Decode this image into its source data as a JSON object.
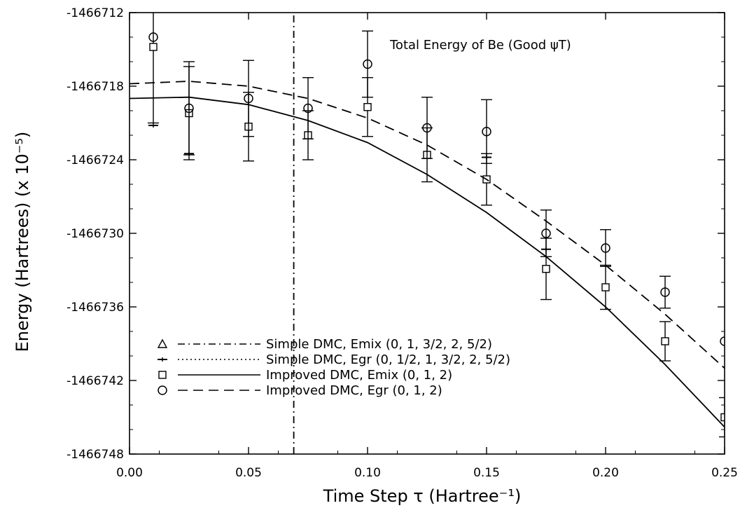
{
  "chart_data": {
    "type": "line",
    "title": "",
    "annotation": "Total Energy of Be (Good ψT)",
    "xlabel": "Time Step τ (Hartree⁻¹)",
    "ylabel": "Energy (Hartrees) (x 10⁻⁵)",
    "xlim": [
      0.0,
      0.25
    ],
    "ylim": [
      -1466748,
      -1466712
    ],
    "x_ticks": [
      0.0,
      0.05,
      0.1,
      0.15,
      0.2,
      0.25
    ],
    "x_tick_labels": [
      "0.00",
      "0.05",
      "0.10",
      "0.15",
      "0.20",
      "0.25"
    ],
    "y_ticks": [
      -1466748,
      -1466742,
      -1466736,
      -1466730,
      -1466724,
      -1466718,
      -1466712
    ],
    "y_tick_labels": [
      "-1466748",
      "-1466742",
      "-1466736",
      "-1466730",
      "-1466724",
      "-1466718",
      "-1466712"
    ],
    "grid": false,
    "legend_position": "bottom-left",
    "legend": [
      {
        "marker": "△",
        "line": "dashdot",
        "label": "Simple DMC, Emix (0, 1, 3/2, 2, 5/2)"
      },
      {
        "marker": "+",
        "line": "dotted",
        "label": "Simple DMC, Egr (0, 1/2, 1, 3/2, 2, 5/2)"
      },
      {
        "marker": "□",
        "line": "solid",
        "label": "Improved DMC, Emix (0, 1, 2)"
      },
      {
        "marker": "○",
        "line": "dashed",
        "label": "Improved DMC, Egr (0, 1, 2)"
      }
    ],
    "series": [
      {
        "label_ref": "Simple DMC, Emix",
        "line_style": "dashdot",
        "x": [
          0.069,
          0.069
        ],
        "y": [
          -1466748,
          -1466712
        ]
      },
      {
        "label_ref": "Simple DMC, Egr",
        "marker": "plus",
        "x": [
          0.01,
          0.025,
          0.15,
          0.175
        ],
        "y": [
          -1466721.2,
          -1466723.5,
          -1466723.8,
          -1466731.3
        ]
      },
      {
        "label_ref": "Improved DMC, Emix",
        "marker": "square",
        "x": [
          0.01,
          0.025,
          0.05,
          0.075,
          0.1,
          0.125,
          0.15,
          0.175,
          0.2,
          0.225,
          0.25
        ],
        "y": [
          -1466714.8,
          -1466720.2,
          -1466721.3,
          -1466722.0,
          -1466719.7,
          -1466723.6,
          -1466725.6,
          -1466732.9,
          -1466734.4,
          -1466738.8,
          -1466745.0
        ],
        "err": [
          6.2,
          3.8,
          2.8,
          2.0,
          2.4,
          2.2,
          2.1,
          2.5,
          1.8,
          1.6,
          1.6
        ]
      },
      {
        "label_ref": "Improved DMC, Egr",
        "marker": "circle",
        "x": [
          0.01,
          0.025,
          0.05,
          0.075,
          0.1,
          0.125,
          0.15,
          0.175,
          0.2,
          0.225,
          0.25
        ],
        "y": [
          -1466714.0,
          -1466719.8,
          -1466719.0,
          -1466719.8,
          -1466716.2,
          -1466721.4,
          -1466721.7,
          -1466730.0,
          -1466731.2,
          -1466734.8,
          -1466738.8
        ],
        "err": [
          0,
          3.8,
          3.1,
          2.5,
          2.7,
          2.5,
          2.6,
          1.9,
          1.5,
          1.3,
          0
        ]
      },
      {
        "label_ref": "Improved DMC, Emix fit",
        "line_style": "solid",
        "x": [
          0.0,
          0.025,
          0.05,
          0.075,
          0.1,
          0.125,
          0.15,
          0.175,
          0.2,
          0.225,
          0.25
        ],
        "y": [
          -1466719.0,
          -1466718.9,
          -1466719.5,
          -1466720.8,
          -1466722.6,
          -1466725.2,
          -1466728.3,
          -1466731.9,
          -1466736.0,
          -1466740.7,
          -1466745.8
        ]
      },
      {
        "label_ref": "Improved DMC, Egr fit",
        "line_style": "dashed",
        "x": [
          0.0,
          0.025,
          0.05,
          0.075,
          0.1,
          0.125,
          0.15,
          0.175,
          0.2,
          0.225,
          0.25
        ],
        "y": [
          -1466717.8,
          -1466717.6,
          -1466718.0,
          -1466719.0,
          -1466720.6,
          -1466722.8,
          -1466725.6,
          -1466729.0,
          -1466732.6,
          -1466736.6,
          -1466741.0
        ]
      }
    ]
  }
}
